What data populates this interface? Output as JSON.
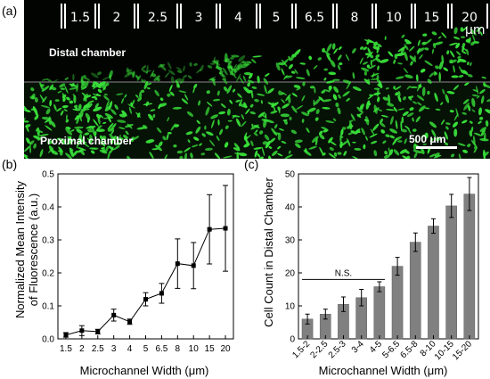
{
  "panel_a": {
    "label": "(a)",
    "channel_widths": [
      "1.5",
      "2",
      "2.5",
      "3",
      "4",
      "5",
      "6.5",
      "8",
      "10",
      "15",
      "20"
    ],
    "unit": "μm",
    "distal_label": "Distal chamber",
    "proximal_label": "Proximal chamber",
    "scale_bar": "500 μm",
    "colors": {
      "background": "#020402",
      "cells": "#39e23a"
    }
  },
  "panel_b": {
    "label": "(b)"
  },
  "panel_c": {
    "label": "(c)"
  },
  "chart_data": [
    {
      "type": "line",
      "x": [
        "1.5",
        "2",
        "2.5",
        "3",
        "4",
        "5",
        "6.5",
        "8",
        "10",
        "15",
        "20"
      ],
      "values": [
        0.012,
        0.025,
        0.022,
        0.072,
        0.052,
        0.12,
        0.138,
        0.228,
        0.222,
        0.332,
        0.335
      ],
      "errors": [
        0.007,
        0.015,
        0.007,
        0.018,
        0.008,
        0.02,
        0.03,
        0.075,
        0.07,
        0.105,
        0.13
      ],
      "xlabel": "Microchannel Width (μm)",
      "ylabel": "Normalized Mean Intensity of Fluorescence (a.u.)",
      "ylabel_lines": [
        "Normalized Mean Intensity",
        "of Fluorescence (a.u.)"
      ],
      "ylim": [
        0,
        0.5
      ],
      "yticks": [
        "0.0",
        "0.1",
        "0.2",
        "0.3",
        "0.4",
        "0.5"
      ],
      "marker": "square",
      "grid": false,
      "color": "#000000"
    },
    {
      "type": "bar",
      "categories": [
        "1.5-2",
        "2-2.5",
        "2.5-3",
        "3-4",
        "4-5",
        "5-6.5",
        "6.5-8",
        "8-10",
        "10-15",
        "15-20"
      ],
      "values": [
        6,
        7.5,
        10.5,
        12.5,
        15.8,
        22,
        29.3,
        34.2,
        40.3,
        43.9
      ],
      "errors": [
        1.5,
        1.5,
        2.2,
        2.5,
        1.5,
        2.7,
        2.8,
        2.2,
        3.5,
        5
      ],
      "xlabel": "Microchannel Width (μm)",
      "ylabel": "Cell Count in Distal Chamber",
      "ylim": [
        0,
        50
      ],
      "yticks": [
        "0",
        "10",
        "20",
        "30",
        "40",
        "50"
      ],
      "annotation": "N.S.",
      "bar_color": "#808080",
      "grid": false
    }
  ]
}
